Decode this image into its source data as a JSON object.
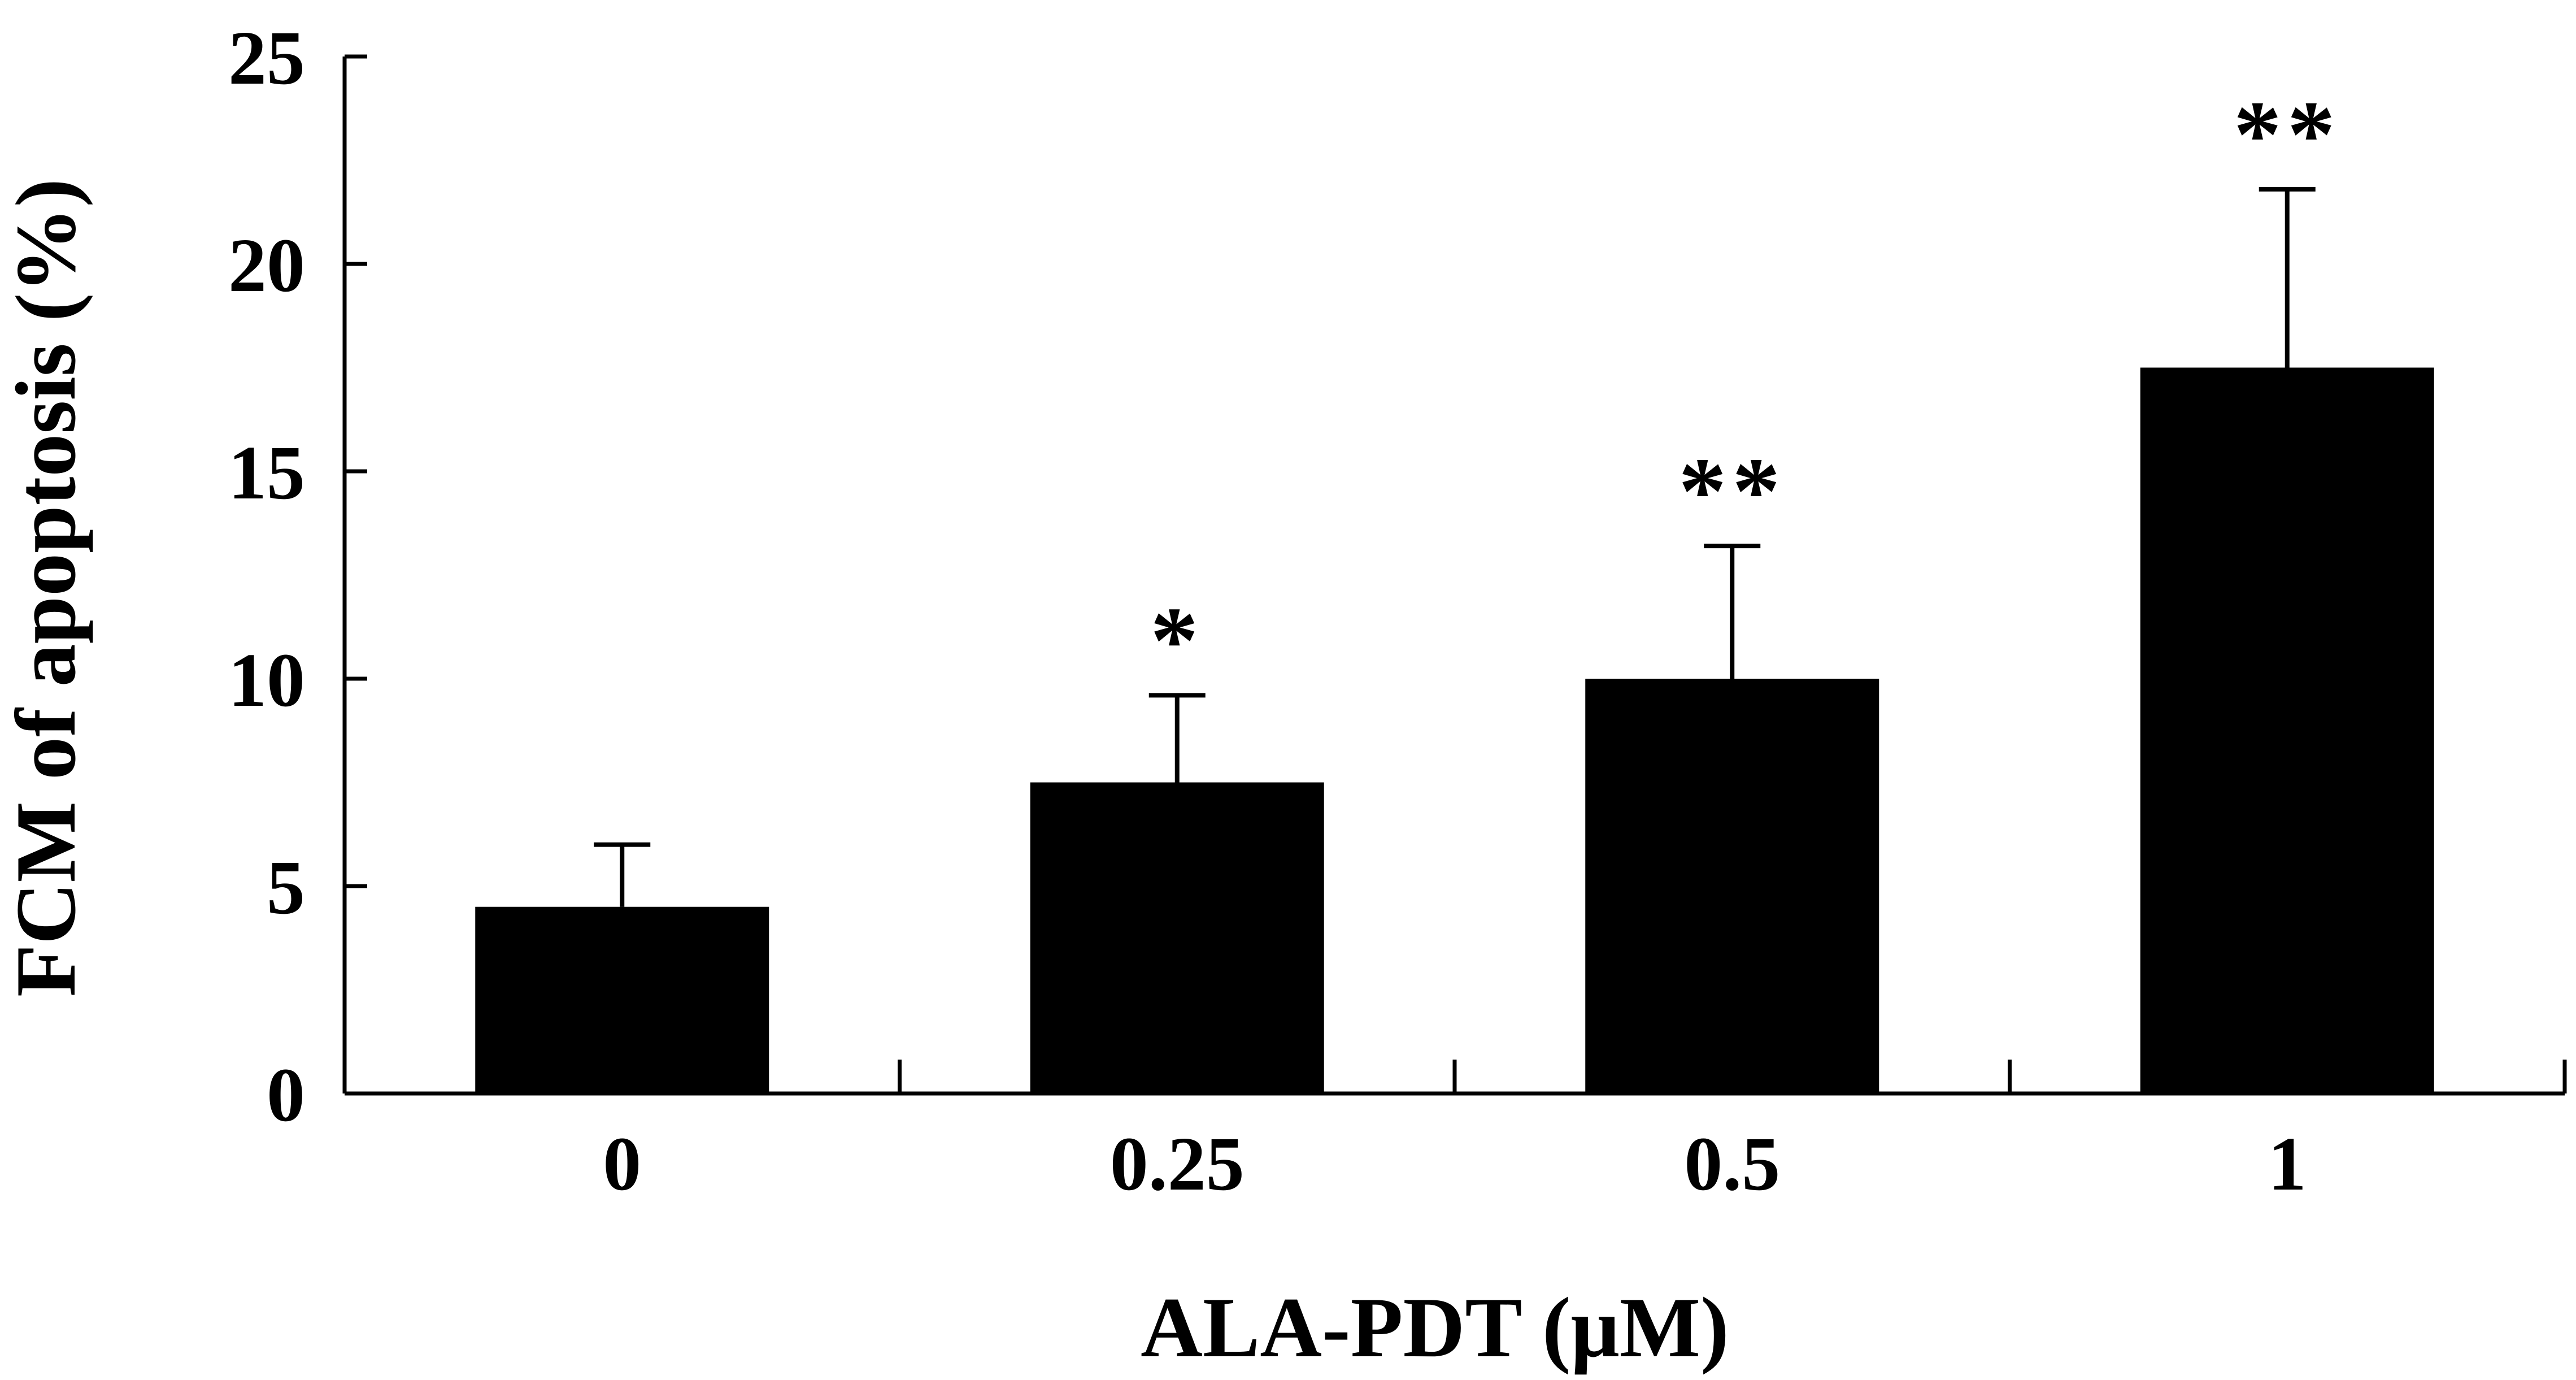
{
  "chart_data": {
    "type": "bar",
    "categories": [
      "0",
      "0.25",
      "0.5",
      "1"
    ],
    "series": [
      {
        "values": [
          4.5,
          7.5,
          10.0,
          17.5
        ],
        "errors": [
          1.5,
          2.1,
          3.2,
          4.3
        ]
      }
    ],
    "significance": [
      "",
      "*",
      "**",
      "**"
    ],
    "title": "",
    "xlabel": "ALA-PDT (μM)",
    "ylabel": "FCM of apoptosis (%)",
    "ylim": [
      0,
      25
    ],
    "yticks": [
      "0",
      "5",
      "10",
      "15",
      "20",
      "25"
    ],
    "grid": false,
    "legend": "none",
    "bar_color": "#000000"
  }
}
